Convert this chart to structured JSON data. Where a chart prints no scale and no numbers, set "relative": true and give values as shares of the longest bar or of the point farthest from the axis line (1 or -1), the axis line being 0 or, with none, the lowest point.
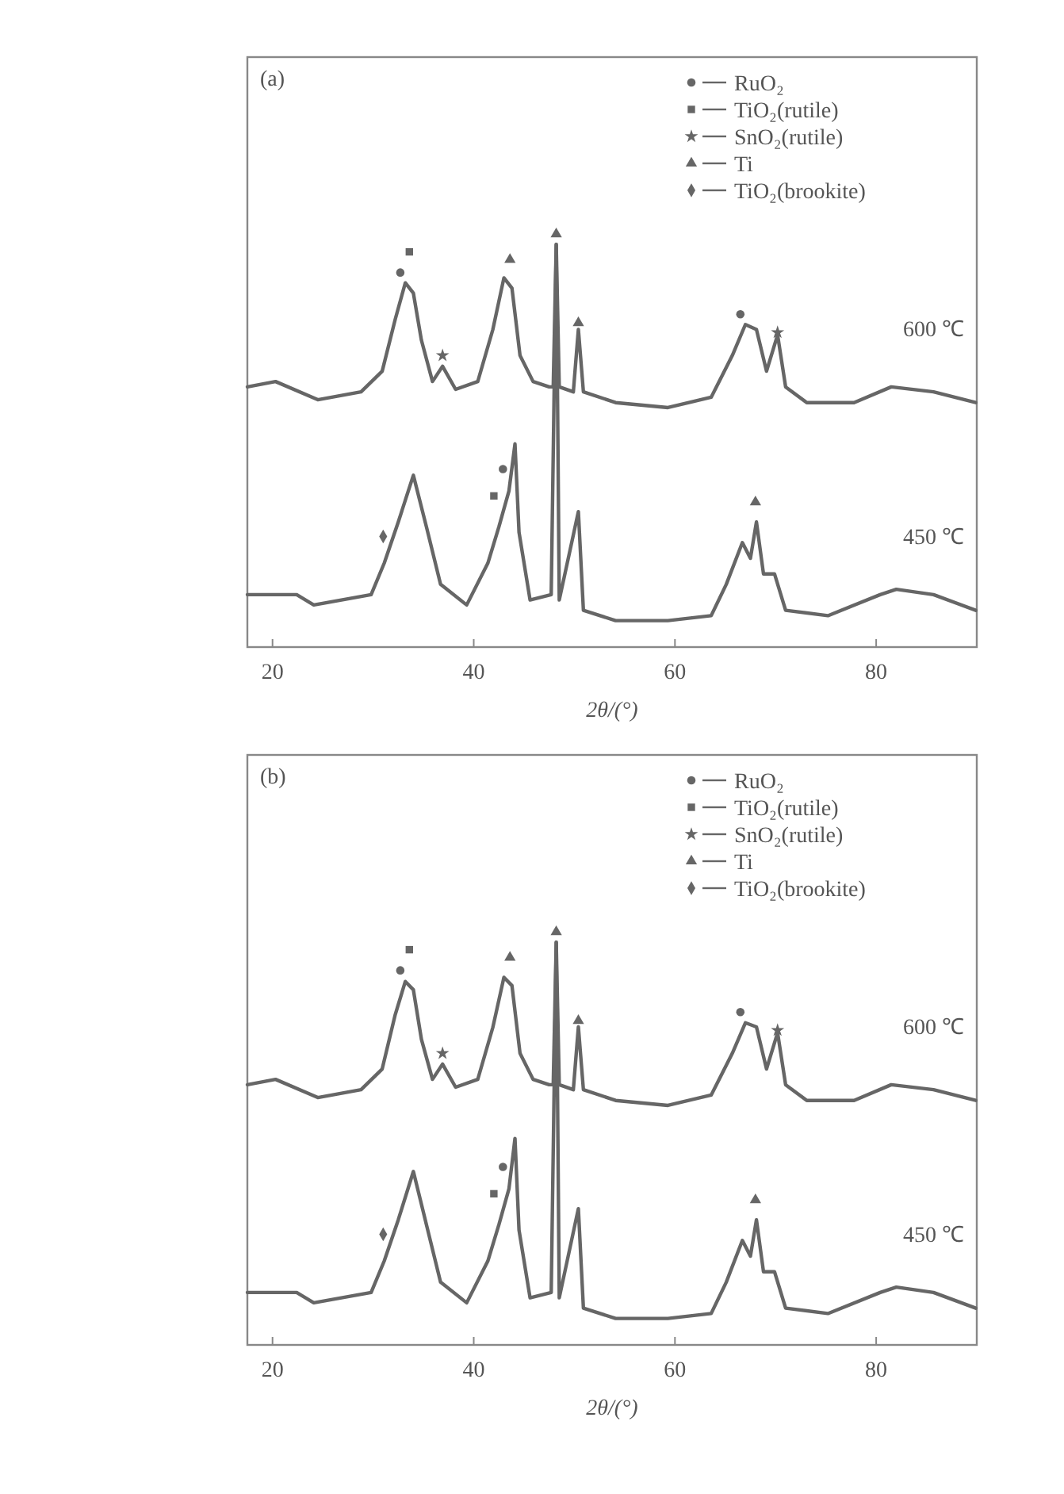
{
  "chart_data": [
    {
      "type": "line",
      "title": "(a)",
      "xlabel": "2θ/(°)",
      "relative": true,
      "xlim": [
        17.5,
        90
      ],
      "xticks": [
        20,
        40,
        60,
        80
      ],
      "grid": false,
      "legend": "top right",
      "series": [
        {
          "name": "600 ℃",
          "color": "#666666",
          "x": [
            17.5,
            20.3,
            24.5,
            28.8,
            30.9,
            32.2,
            33.2,
            34.0,
            34.8,
            35.9,
            36.9,
            38.2,
            40.4,
            41.9,
            43.0,
            43.8,
            44.6,
            45.9,
            47.5,
            47.9,
            48.2,
            48.5,
            49.9,
            50.4,
            50.9,
            54.1,
            59.3,
            63.6,
            65.7,
            67.0,
            68.1,
            69.1,
            70.2,
            71.0,
            73.1,
            77.8,
            81.5,
            85.7,
            89.9
          ],
          "values": [
            0.63,
            0.643,
            0.599,
            0.618,
            0.668,
            0.794,
            0.882,
            0.857,
            0.743,
            0.643,
            0.68,
            0.624,
            0.643,
            0.769,
            0.894,
            0.869,
            0.706,
            0.643,
            0.63,
            0.63,
            0.975,
            0.63,
            0.618,
            0.769,
            0.618,
            0.592,
            0.58,
            0.605,
            0.706,
            0.781,
            0.769,
            0.668,
            0.756,
            0.63,
            0.592,
            0.592,
            0.63,
            0.618,
            0.592
          ]
        },
        {
          "name": "450 ℃",
          "color": "#666666",
          "x": [
            17.5,
            22.4,
            24.1,
            29.8,
            31.1,
            32.5,
            34.0,
            35.3,
            36.7,
            39.3,
            41.4,
            42.5,
            43.5,
            44.1,
            44.5,
            45.6,
            47.7,
            48.2,
            48.5,
            50.4,
            50.9,
            54.1,
            59.3,
            63.6,
            65.1,
            66.7,
            67.5,
            68.1,
            68.8,
            69.9,
            71.0,
            75.2,
            80.4,
            82.0,
            85.7,
            89.9
          ],
          "values": [
            0.127,
            0.127,
            0.102,
            0.127,
            0.203,
            0.303,
            0.416,
            0.291,
            0.152,
            0.102,
            0.203,
            0.291,
            0.378,
            0.492,
            0.278,
            0.114,
            0.127,
            0.975,
            0.114,
            0.328,
            0.089,
            0.064,
            0.064,
            0.076,
            0.152,
            0.253,
            0.215,
            0.303,
            0.177,
            0.177,
            0.089,
            0.076,
            0.127,
            0.14,
            0.127,
            0.089
          ]
        },
        {
          "name": "RuO₂",
          "type": "scatter",
          "marker": "circle",
          "color": "#666666",
          "x": [
            32.7,
            66.5,
            42.9
          ],
          "values": [
            0.907,
            0.806,
            0.431
          ]
        },
        {
          "name": "TiO₂(rutile)",
          "type": "scatter",
          "marker": "square",
          "color": "#666666",
          "x": [
            33.6,
            42.0
          ],
          "values": [
            0.957,
            0.366
          ]
        },
        {
          "name": "SnO₂(rutile)",
          "type": "scatter",
          "marker": "star",
          "color": "#666666",
          "x": [
            36.9,
            70.2
          ],
          "values": [
            0.706,
            0.762
          ]
        },
        {
          "name": "Ti",
          "type": "scatter",
          "marker": "triangle",
          "color": "#666666",
          "x": [
            43.6,
            48.2,
            50.4,
            68.0
          ],
          "values": [
            0.938,
            1,
            0.785,
            0.351
          ]
        },
        {
          "name": "TiO₂(brookite)",
          "type": "scatter",
          "marker": "diamond",
          "color": "#666666",
          "x": [
            31.0
          ],
          "values": [
            0.268
          ]
        }
      ]
    },
    {
      "type": "line",
      "title": "(b)",
      "xlabel": "2θ/(°)",
      "relative": true,
      "xlim": [
        17.5,
        90
      ],
      "xticks": [
        20,
        40,
        60,
        80
      ],
      "grid": false,
      "legend": "top right",
      "series": [
        {
          "name": "600 ℃",
          "color": "#666666",
          "x": [
            17.5,
            20.3,
            24.5,
            28.8,
            30.9,
            32.2,
            33.2,
            34.0,
            34.8,
            35.9,
            36.9,
            38.2,
            40.4,
            41.9,
            43.0,
            43.8,
            44.6,
            45.9,
            47.5,
            47.9,
            48.2,
            48.5,
            49.9,
            50.4,
            50.9,
            54.1,
            59.3,
            63.6,
            65.7,
            67.0,
            68.1,
            69.1,
            70.2,
            71.0,
            73.1,
            77.8,
            81.5,
            85.7,
            89.9
          ],
          "values": [
            0.63,
            0.643,
            0.599,
            0.618,
            0.668,
            0.8,
            0.88,
            0.86,
            0.74,
            0.643,
            0.68,
            0.624,
            0.643,
            0.769,
            0.89,
            0.87,
            0.706,
            0.643,
            0.63,
            0.63,
            0.975,
            0.63,
            0.618,
            0.77,
            0.618,
            0.592,
            0.58,
            0.605,
            0.706,
            0.78,
            0.77,
            0.668,
            0.756,
            0.63,
            0.592,
            0.592,
            0.63,
            0.618,
            0.592
          ]
        },
        {
          "name": "450 ℃",
          "color": "#666666",
          "x": [
            17.5,
            22.4,
            24.1,
            29.8,
            31.1,
            32.5,
            34.0,
            35.3,
            36.7,
            39.3,
            41.4,
            42.5,
            43.5,
            44.1,
            44.5,
            45.6,
            47.7,
            48.2,
            48.5,
            50.4,
            50.9,
            54.1,
            59.3,
            63.6,
            65.1,
            66.7,
            67.5,
            68.1,
            68.8,
            69.9,
            71.0,
            75.2,
            80.4,
            82.0,
            85.7,
            89.9
          ],
          "values": [
            0.127,
            0.127,
            0.102,
            0.127,
            0.203,
            0.303,
            0.42,
            0.291,
            0.152,
            0.102,
            0.203,
            0.291,
            0.378,
            0.5,
            0.278,
            0.114,
            0.127,
            0.975,
            0.114,
            0.33,
            0.089,
            0.064,
            0.064,
            0.076,
            0.152,
            0.253,
            0.215,
            0.303,
            0.177,
            0.177,
            0.089,
            0.076,
            0.127,
            0.14,
            0.127,
            0.089
          ]
        },
        {
          "name": "RuO₂",
          "type": "scatter",
          "marker": "circle",
          "color": "#666666",
          "x": [
            32.7,
            66.5,
            42.9
          ],
          "values": [
            0.907,
            0.806,
            0.431
          ]
        },
        {
          "name": "TiO₂(rutile)",
          "type": "scatter",
          "marker": "square",
          "color": "#666666",
          "x": [
            33.6,
            42.0
          ],
          "values": [
            0.957,
            0.366
          ]
        },
        {
          "name": "SnO₂(rutile)",
          "type": "scatter",
          "marker": "star",
          "color": "#666666",
          "x": [
            36.9,
            70.2
          ],
          "values": [
            0.706,
            0.762
          ]
        },
        {
          "name": "Ti",
          "type": "scatter",
          "marker": "triangle",
          "color": "#666666",
          "x": [
            43.6,
            48.2,
            50.4,
            68.0
          ],
          "values": [
            0.938,
            1,
            0.785,
            0.351
          ]
        },
        {
          "name": "TiO₂(brookite)",
          "type": "scatter",
          "marker": "diamond",
          "color": "#666666",
          "x": [
            31.0
          ],
          "values": [
            0.268
          ]
        }
      ]
    }
  ]
}
